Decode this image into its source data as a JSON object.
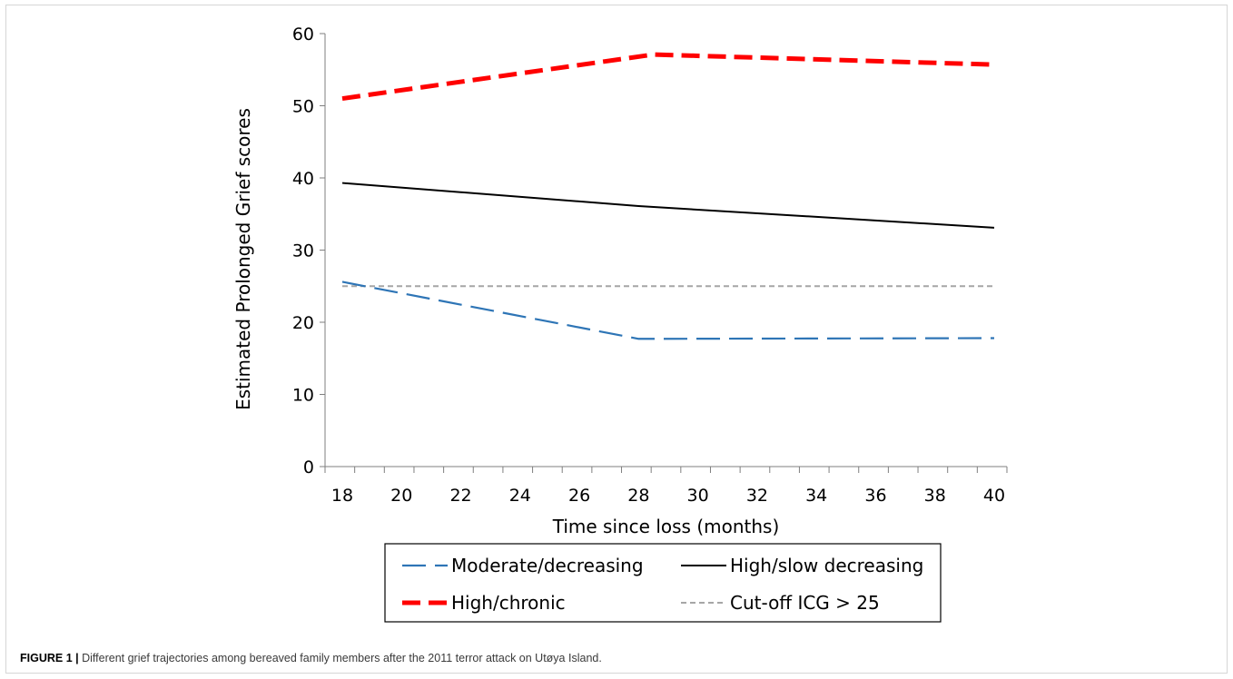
{
  "caption": {
    "label": "FIGURE 1 |",
    "text": " Different grief trajectories among bereaved family members after the 2011 terror attack on Utøya Island."
  },
  "chart_data": {
    "type": "line",
    "xlabel": "Time since loss (months)",
    "ylabel": "Estimated Prolonged Grief scores",
    "xlim": [
      18,
      40
    ],
    "ylim": [
      0,
      60
    ],
    "xticks": [
      18,
      20,
      22,
      24,
      26,
      28,
      30,
      32,
      34,
      36,
      38,
      40
    ],
    "yticks": [
      0,
      10,
      20,
      30,
      40,
      50,
      60
    ],
    "grid": false,
    "legend_position": "bottom",
    "series": [
      {
        "name": "Moderate/decreasing",
        "color": "#2e75b6",
        "style": "dashed",
        "x": [
          18,
          28,
          40
        ],
        "y": [
          25.6,
          17.7,
          17.8
        ]
      },
      {
        "name": "High/slow decreasing",
        "color": "#000000",
        "style": "solid",
        "x": [
          18,
          28,
          40
        ],
        "y": [
          39.3,
          36.1,
          33.1
        ]
      },
      {
        "name": "High/chronic",
        "color": "#ff0000",
        "style": "thick-dashed",
        "x": [
          18,
          28.5,
          40
        ],
        "y": [
          51.0,
          57.1,
          55.7
        ]
      },
      {
        "name": "Cut-off ICG > 25",
        "color": "#a6a6a6",
        "style": "dotted",
        "x": [
          18,
          40
        ],
        "y": [
          25,
          25
        ]
      }
    ]
  }
}
